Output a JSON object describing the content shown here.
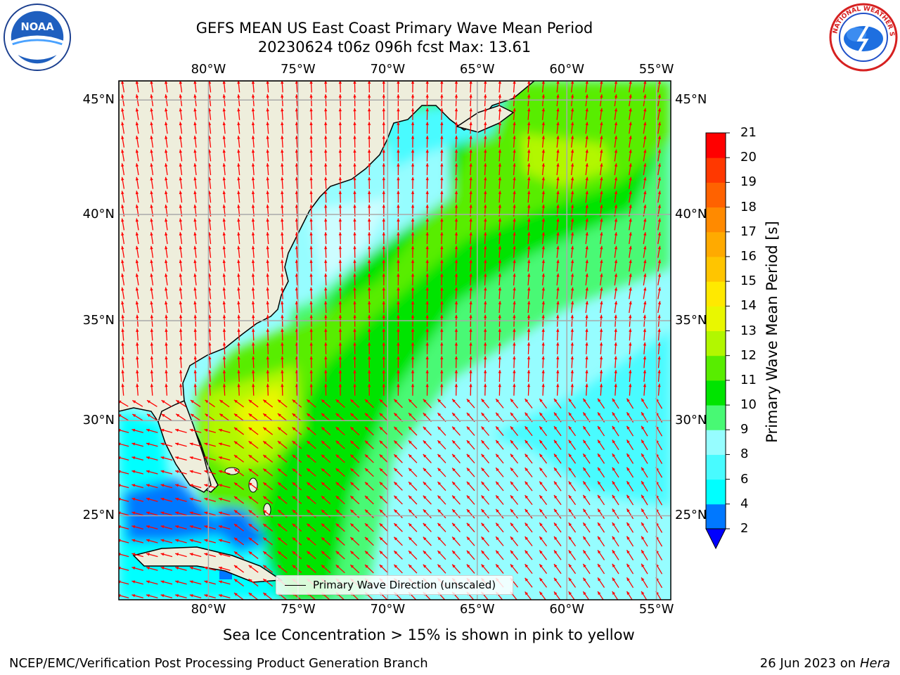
{
  "header": {
    "title_line1": "GEFS MEAN US East Coast Primary Wave Mean Period",
    "title_line2": "20230624 t06z 096h fcst   Max: 13.61"
  },
  "logos": {
    "left": {
      "icon": "noaa-logo-icon",
      "label": "NOAA",
      "ring_text": "NATIONAL OCEANIC AND ATMOSPHERIC ADMINISTRATION · U.S. DEPARTMENT OF COMMERCE"
    },
    "right": {
      "icon": "nws-logo-icon",
      "ring_text": "NATIONAL WEATHER SERVICE"
    }
  },
  "map": {
    "lon_labels": [
      "80°W",
      "75°W",
      "70°W",
      "65°W",
      "60°W",
      "55°W"
    ],
    "lon_values": [
      -80,
      -75,
      -70,
      -65,
      -60,
      -55
    ],
    "lat_labels": [
      "45°N",
      "40°N",
      "35°N",
      "30°N",
      "25°N"
    ],
    "lat_values": [
      45,
      40,
      35,
      30,
      25
    ],
    "lon_range": [
      -85,
      -54.2
    ],
    "lat_range": [
      20.4,
      45.8
    ],
    "projection": "Mercator",
    "gridlines": true,
    "land_color": "#eeeedc",
    "arrow_color": "#ff0000",
    "legend": {
      "label": "Primary Wave Direction (unscaled)",
      "placement": "lower-center"
    }
  },
  "colorbar": {
    "title": "Primary Wave Mean Period [s]",
    "tick_labels": [
      "21",
      "20",
      "19",
      "18",
      "17",
      "16",
      "15",
      "14",
      "13",
      "12",
      "11",
      "10",
      "9",
      "8",
      "6",
      "4",
      "2"
    ],
    "levels": [
      2,
      4,
      6,
      8,
      9,
      10,
      11,
      12,
      13,
      14,
      15,
      16,
      17,
      18,
      19,
      20,
      21
    ],
    "colors": [
      "#0078ff",
      "#00ffff",
      "#48fbff",
      "#96fdff",
      "#48f974",
      "#00e400",
      "#58ed00",
      "#b2f700",
      "#e9f700",
      "#ffe900",
      "#ffc500",
      "#ffaa00",
      "#ff8a00",
      "#ff6200",
      "#ff3800",
      "#ff0000"
    ],
    "extend_min_color": "#0000ff"
  },
  "footer": {
    "note": "Sea Ice Concentration > 15% is shown in pink to yellow",
    "credit": "NCEP/EMC/Verification Post Processing Product Generation Branch",
    "date": "26 Jun 2023 on",
    "host": "Hera"
  }
}
